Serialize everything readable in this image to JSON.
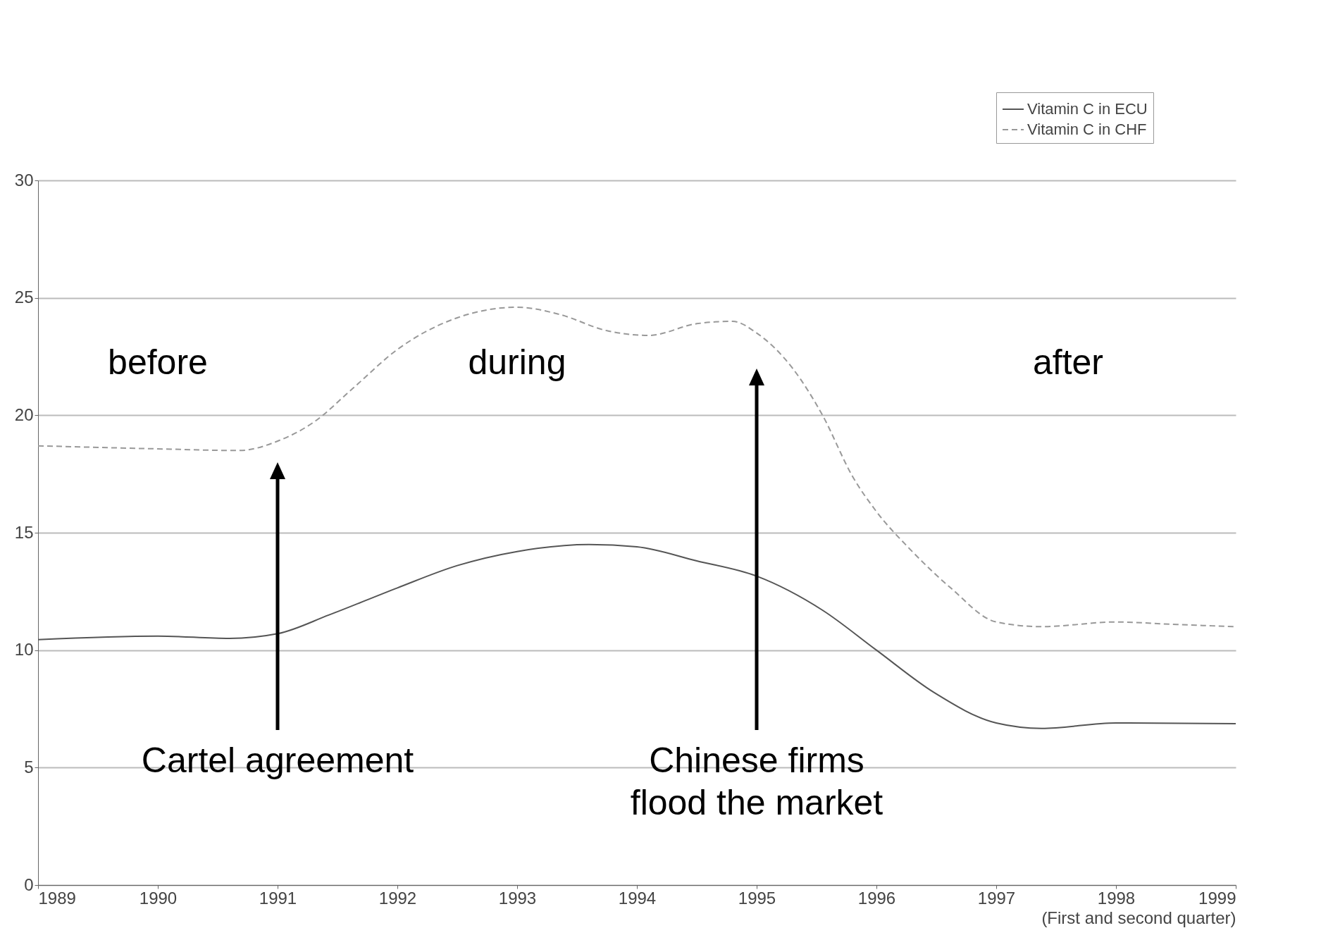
{
  "chart_data": {
    "type": "line",
    "xlabel": "(First and second quarter)",
    "xlim": [
      1989,
      1999
    ],
    "xticks": [
      1989,
      1990,
      1991,
      1992,
      1993,
      1994,
      1995,
      1996,
      1997,
      1998,
      1999
    ],
    "ylim": [
      0,
      30
    ],
    "yticks": [
      0,
      5,
      10,
      15,
      20,
      25,
      30
    ],
    "grid": "y",
    "legend": "top right",
    "series": [
      {
        "name": "Vitamin C in ECU",
        "color": "#555555",
        "line_style": "solid",
        "x": [
          1989,
          1990,
          1990.6,
          1991,
          1991.43,
          1992,
          1992.5,
          1993,
          1993.6,
          1994,
          1994.5,
          1995,
          1995.55,
          1996,
          1996.48,
          1997,
          1997.38,
          1998,
          1999
        ],
        "values": [
          10.45,
          10.6,
          10.5,
          10.7,
          11.5,
          12.65,
          13.6,
          14.2,
          14.5,
          14.4,
          13.8,
          13.15,
          11.7,
          10.0,
          8.2,
          6.9,
          6.67,
          6.9,
          6.87
        ]
      },
      {
        "name": "Vitamin C in CHF",
        "color": "#999999",
        "line_style": "dashed",
        "x": [
          1989,
          1990,
          1990.68,
          1991,
          1991.3,
          1991.64,
          1992,
          1992.5,
          1993,
          1993.35,
          1993.75,
          1994.1,
          1994.5,
          1994.8,
          1995,
          1995.3,
          1995.55,
          1995.8,
          1996,
          1996.28,
          1996.62,
          1997,
          1997.38,
          1998,
          1998.47,
          1999
        ],
        "values": [
          18.7,
          18.57,
          18.5,
          18.9,
          19.7,
          21.2,
          22.8,
          24.15,
          24.6,
          24.3,
          23.6,
          23.4,
          23.9,
          24.0,
          23.5,
          22.0,
          20.0,
          17.4,
          15.9,
          14.3,
          12.65,
          11.2,
          11.0,
          11.2,
          11.1,
          11.0
        ]
      }
    ],
    "annotations": [
      "before",
      "during",
      "after",
      "Cartel agreement",
      "Chinese firms\nflood the market"
    ]
  }
}
